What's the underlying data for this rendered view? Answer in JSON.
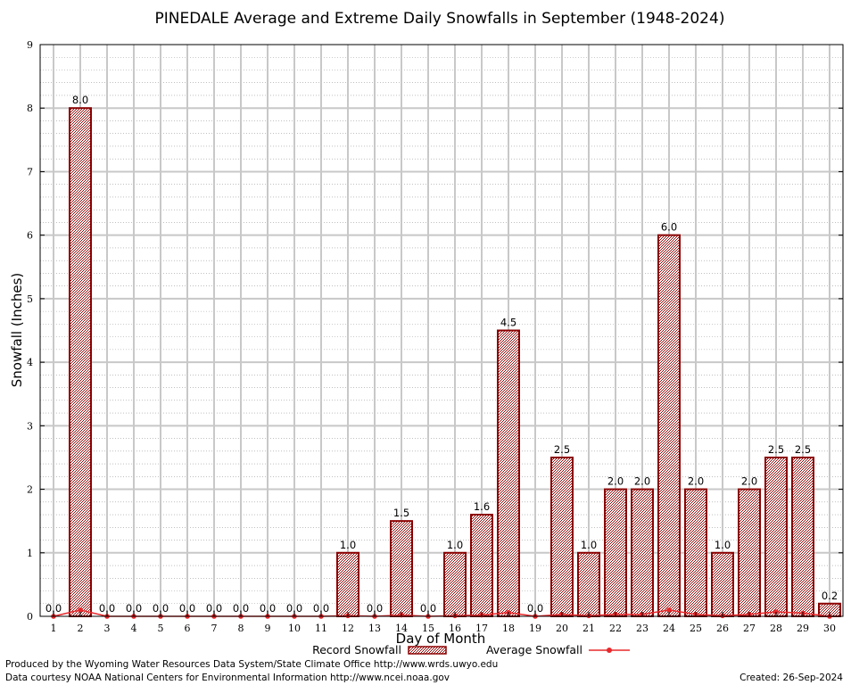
{
  "chart_data": {
    "type": "bar",
    "title": "PINEDALE Average and Extreme Daily Snowfalls in September (1948-2024)",
    "xlabel": "Day of Month",
    "ylabel": "Snowfall (Inches)",
    "ylim": [
      0,
      9
    ],
    "yticks": [
      0,
      1,
      2,
      3,
      4,
      5,
      6,
      7,
      8,
      9
    ],
    "grid": true,
    "categories": [
      "1",
      "2",
      "3",
      "4",
      "5",
      "6",
      "7",
      "8",
      "9",
      "10",
      "11",
      "12",
      "13",
      "14",
      "15",
      "16",
      "17",
      "18",
      "19",
      "20",
      "21",
      "22",
      "23",
      "24",
      "25",
      "26",
      "27",
      "28",
      "29",
      "30"
    ],
    "series": [
      {
        "name": "Record Snowfall",
        "type": "bar",
        "color": "#8b0000",
        "values": [
          0.0,
          8.0,
          0.0,
          0.0,
          0.0,
          0.0,
          0.0,
          0.0,
          0.0,
          0.0,
          0.0,
          1.0,
          0.0,
          1.5,
          0.0,
          1.0,
          1.6,
          4.5,
          0.0,
          2.5,
          1.0,
          2.0,
          2.0,
          6.0,
          2.0,
          1.0,
          2.0,
          2.5,
          2.5,
          0.2
        ],
        "labels": [
          "0.0",
          "8.0",
          "0.0",
          "0.0",
          "0.0",
          "0.0",
          "0.0",
          "0.0",
          "0.0",
          "0.0",
          "0.0",
          "1.0",
          "0.0",
          "1.5",
          "0.0",
          "1.0",
          "1.6",
          "4.5",
          "0.0",
          "2.5",
          "1.0",
          "2.0",
          "2.0",
          "6.0",
          "2.0",
          "1.0",
          "2.0",
          "2.5",
          "2.5",
          "0.2"
        ]
      },
      {
        "name": "Average Snowfall",
        "type": "line",
        "color": "#e8282b",
        "values": [
          0.0,
          0.1,
          0.0,
          0.0,
          0.0,
          0.0,
          0.0,
          0.0,
          0.0,
          0.0,
          0.0,
          0.01,
          0.0,
          0.02,
          0.0,
          0.01,
          0.02,
          0.06,
          0.0,
          0.03,
          0.01,
          0.03,
          0.03,
          0.1,
          0.03,
          0.01,
          0.03,
          0.07,
          0.05,
          0.0
        ]
      }
    ],
    "legend": "bottom-center"
  },
  "footer": {
    "produced_by": "Produced by the Wyoming Water Resources Data System/State Climate Office http://www.wrds.uwyo.edu",
    "courtesy": "Data courtesy NOAA National Centers for Environmental Information http://www.ncei.noaa.gov",
    "created": "Created: 26-Sep-2024"
  }
}
